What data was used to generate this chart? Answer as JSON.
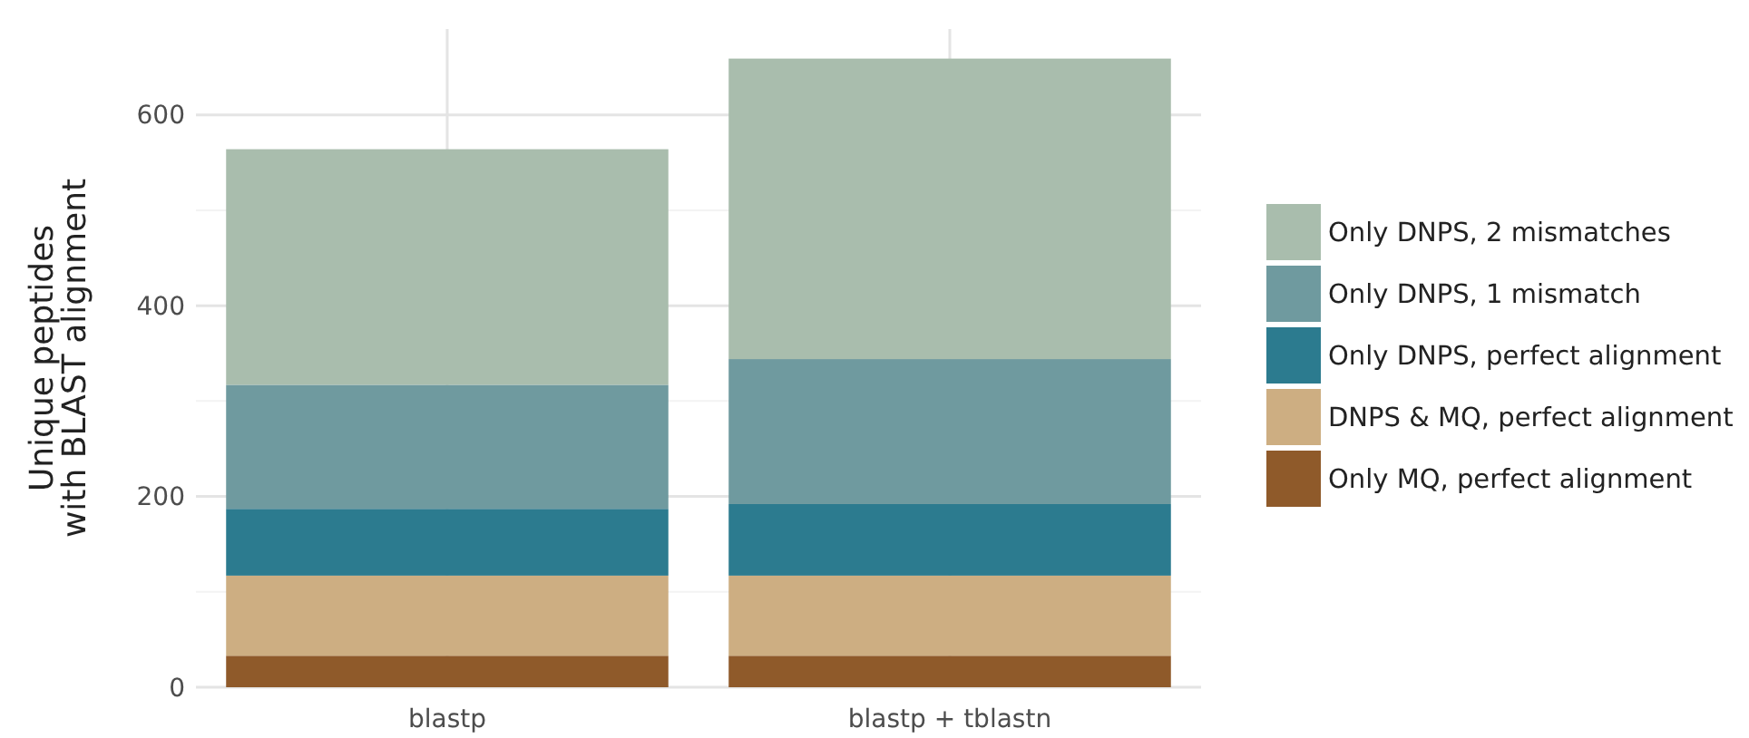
{
  "chart_data": {
    "type": "bar",
    "stacked": true,
    "ylabel": "Unique peptides\nwith BLAST alignment",
    "categories": [
      "blastp",
      "blastp + tblastn"
    ],
    "series": [
      {
        "name": "Only MQ, perfect alignment",
        "color": "#8f5a2a",
        "values": [
          33,
          33
        ]
      },
      {
        "name": "DNPS & MQ, perfect alignment",
        "color": "#cdae82",
        "values": [
          84,
          84
        ]
      },
      {
        "name": "Only DNPS, perfect alignment",
        "color": "#2c7b8f",
        "values": [
          70,
          75
        ]
      },
      {
        "name": "Only DNPS, 1 mismatch",
        "color": "#6f9a9f",
        "values": [
          130,
          152
        ]
      },
      {
        "name": "Only DNPS, 2 mismatches",
        "color": "#a9bdad",
        "values": [
          247,
          315
        ]
      }
    ],
    "ylim": [
      0,
      690
    ],
    "yticks": [
      0,
      200,
      400,
      600
    ],
    "grid": true,
    "legend": "right"
  }
}
